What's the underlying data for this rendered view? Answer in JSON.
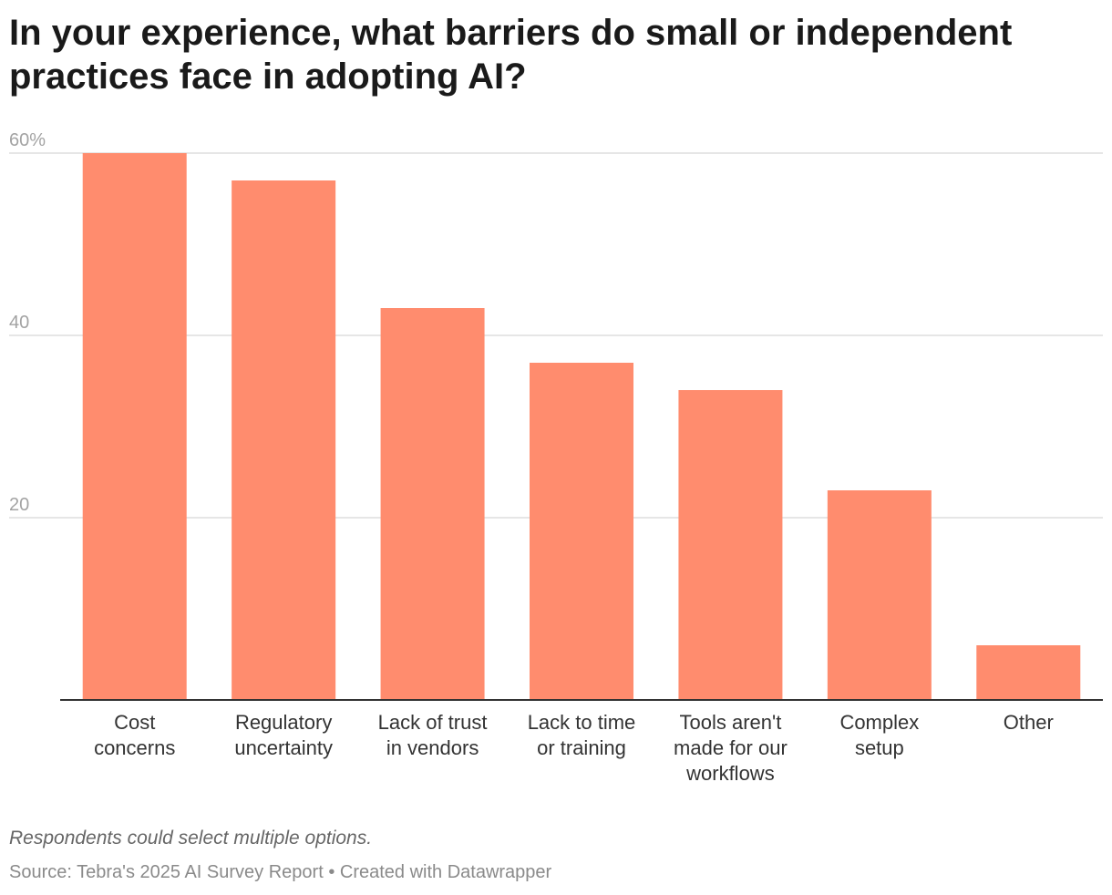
{
  "chart_data": {
    "type": "bar",
    "title": "In your experience, what barriers do small or independent practices face in adopting AI?",
    "categories": [
      [
        "Cost",
        "concerns"
      ],
      [
        "Regulatory",
        "uncertainty"
      ],
      [
        "Lack of trust",
        "in vendors"
      ],
      [
        "Lack to time",
        "or training"
      ],
      [
        "Tools aren't",
        "made for our",
        "workflows"
      ],
      [
        "Complex",
        "setup"
      ],
      [
        "Other"
      ]
    ],
    "values": [
      60,
      57,
      43,
      37,
      34,
      23,
      6
    ],
    "ylim": [
      0,
      60
    ],
    "yticks": [
      20,
      40,
      60
    ],
    "ytick_labels": [
      "20",
      "40",
      "60%"
    ],
    "xlabel": "",
    "ylabel": "",
    "grid": true,
    "bar_color": "#ff8c6e"
  },
  "notes": {
    "caption": "Respondents could select multiple options.",
    "source": "Source: Tebra's 2025 AI Survey Report • Created with Datawrapper"
  }
}
